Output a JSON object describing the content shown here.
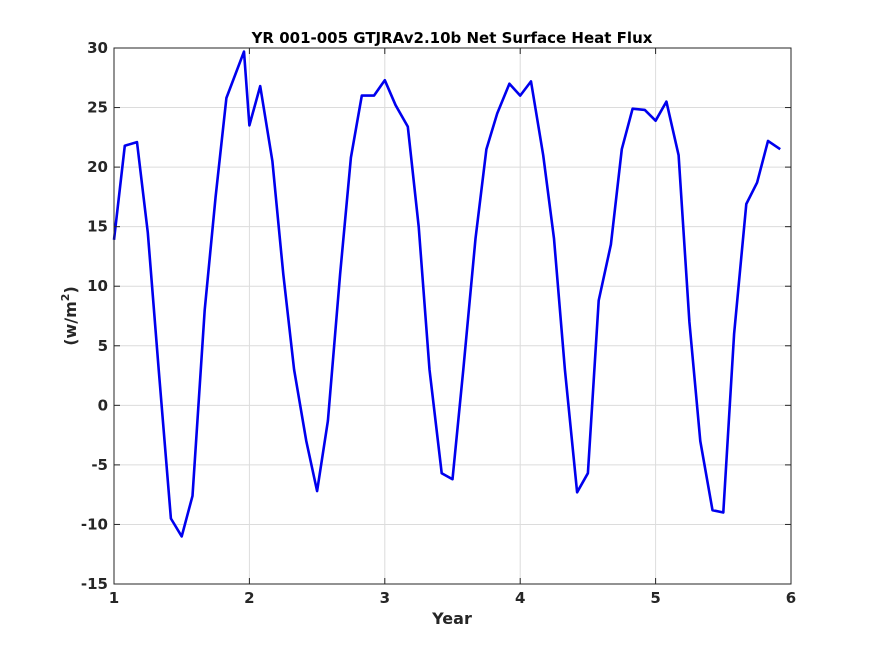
{
  "chart_data": {
    "type": "line",
    "title": "YR 001-005 GTJRAv2.10b Net Surface Heat Flux",
    "xlabel": "Year",
    "ylabel": "(w/m",
    "ylabel_sup": "2",
    "ylabel_close": ")",
    "xlim": [
      1,
      6
    ],
    "ylim": [
      -15,
      30
    ],
    "xticks": [
      1,
      2,
      3,
      4,
      5,
      6
    ],
    "yticks": [
      -15,
      -10,
      -5,
      0,
      5,
      10,
      15,
      20,
      25,
      30
    ],
    "grid": true,
    "series": [
      {
        "color": "#0000ee",
        "x": [
          1.0,
          1.08,
          1.17,
          1.25,
          1.33,
          1.42,
          1.5,
          1.58,
          1.67,
          1.75,
          1.83,
          1.96,
          2.0,
          2.08,
          2.17,
          2.25,
          2.33,
          2.42,
          2.5,
          2.58,
          2.67,
          2.75,
          2.83,
          2.92,
          3.0,
          3.08,
          3.17,
          3.25,
          3.33,
          3.42,
          3.5,
          3.58,
          3.67,
          3.75,
          3.83,
          3.92,
          4.0,
          4.08,
          4.17,
          4.25,
          4.33,
          4.42,
          4.5,
          4.58,
          4.67,
          4.75,
          4.83,
          4.92,
          5.0,
          5.08,
          5.17,
          5.25,
          5.33,
          5.42,
          5.5,
          5.58,
          5.67,
          5.75,
          5.83,
          5.92
        ],
        "y": [
          13.9,
          21.8,
          22.1,
          14.5,
          3.0,
          -9.5,
          -11.0,
          -7.6,
          8.0,
          17.5,
          25.8,
          29.7,
          23.5,
          26.8,
          20.5,
          11.0,
          3.0,
          -3.0,
          -7.2,
          -1.3,
          11.0,
          20.8,
          26.0,
          26.0,
          27.3,
          25.2,
          23.4,
          15.0,
          3.0,
          -5.7,
          -6.2,
          3.0,
          14.0,
          21.5,
          24.5,
          27.0,
          26.0,
          27.2,
          21.0,
          14.0,
          3.0,
          -7.3,
          -5.7,
          8.8,
          13.5,
          21.5,
          24.9,
          24.8,
          23.9,
          25.5,
          21.0,
          7.0,
          -3.0,
          -8.8,
          -9.0,
          6.0,
          16.9,
          18.7,
          22.2,
          21.5
        ]
      }
    ]
  }
}
